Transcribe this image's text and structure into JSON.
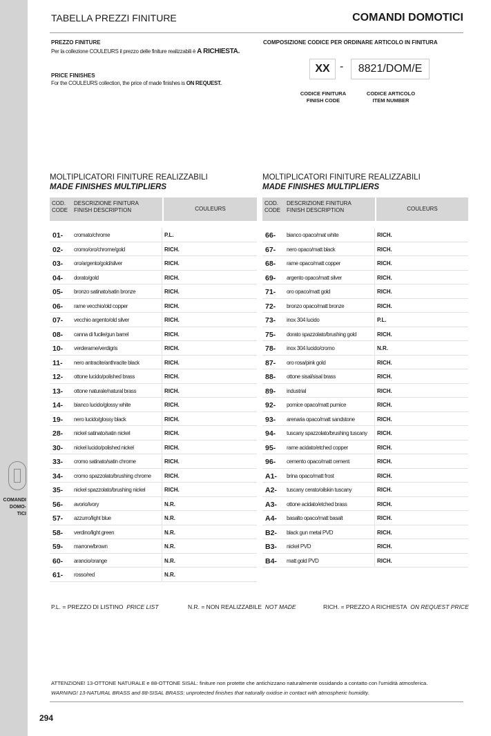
{
  "header": {
    "left_title": "TABELLA PREZZI FINITURE",
    "right_title": "COMANDI DOMOTICI"
  },
  "sidebar": {
    "label_lines": [
      "COMANDI",
      "DOMO-",
      "TICI"
    ],
    "icon": "switch-plate-icon",
    "color": "#d3d3d3"
  },
  "price": {
    "it_title": "PREZZO FINITURE",
    "it_text": "Per la collezione COULEURS il prezzo delle finiture realizzabili è ",
    "it_bold": "A RICHIESTA.",
    "en_title": "PRICE FINISHES",
    "en_text": "For the COULEURS collection, the price of made finishes is ",
    "en_bold": "ON REQUEST."
  },
  "code": {
    "title": "COMPOSIZIONE CODICE PER ORDINARE ARTICOLO IN FINITURA",
    "finish": "XX",
    "dash": "-",
    "item": "8821/DOM/E",
    "finish_label": [
      "CODICE FINITURA",
      "FINISH CODE"
    ],
    "item_label": [
      "CODICE ARTICOLO",
      "ITEM NUMBER"
    ]
  },
  "table_header": {
    "title": "MOLTIPLICATORI FINITURE REALIZZABILI",
    "subtitle": "MADE FINISHES MULTIPLIERS",
    "col_code": [
      "COD.",
      "CODE"
    ],
    "col_desc": [
      "DESCRIZIONE FINITURA",
      "FINISH DESCRIPTION"
    ],
    "col_val": "COULEURS"
  },
  "left_rows": [
    [
      "01-",
      "cromato/chrome",
      "P.L."
    ],
    [
      "02-",
      "cromo/oro/chrome/gold",
      "RICH."
    ],
    [
      "03-",
      "oro/argento/gold/silver",
      "RICH."
    ],
    [
      "04-",
      "dorato/gold",
      "RICH."
    ],
    [
      "05-",
      "bronzo satinato/satin bronze",
      "RICH."
    ],
    [
      "06-",
      "rame vecchio/old copper",
      "RICH."
    ],
    [
      "07-",
      "vecchio argento/old silver",
      "RICH."
    ],
    [
      "08-",
      "canna di fucile/gun barrel",
      "RICH."
    ],
    [
      "10-",
      "verderame/verdigris",
      "RICH."
    ],
    [
      "11-",
      "nero antracite/anthracite black",
      "RICH."
    ],
    [
      "12-",
      "ottone lucido/polished brass",
      "RICH."
    ],
    [
      "13-",
      "ottone naturale/natural brass",
      "RICH."
    ],
    [
      "14-",
      "bianco lucido/glossy white",
      "RICH."
    ],
    [
      "19-",
      "nero lucido/glossy black",
      "RICH."
    ],
    [
      "28-",
      "nickel satinato/satin nickel",
      "RICH."
    ],
    [
      "30-",
      "nickel lucido/polished nickel",
      "RICH."
    ],
    [
      "33-",
      "cromo satinato/satin chrome",
      "RICH."
    ],
    [
      "34-",
      "cromo spazzolato/brushing chrome",
      "RICH."
    ],
    [
      "35-",
      "nickel spazzolato/brushing nickel",
      "RICH."
    ],
    [
      "56-",
      "avorio/ivory",
      "N.R."
    ],
    [
      "57-",
      "azzurro/light blue",
      "N.R."
    ],
    [
      "58-",
      "verdino/light green",
      "N.R."
    ],
    [
      "59-",
      "marrone/brown",
      "N.R."
    ],
    [
      "60-",
      "arancio/orange",
      "N.R."
    ],
    [
      "61-",
      "rosso/red",
      "N.R."
    ]
  ],
  "right_rows": [
    [
      "66-",
      "bianco opaco/mat white",
      "RICH."
    ],
    [
      "67-",
      "nero opaco/matt black",
      "RICH."
    ],
    [
      "68-",
      "rame opaco/matt copper",
      "RICH."
    ],
    [
      "69-",
      "argento opaco/matt silver",
      "RICH."
    ],
    [
      "71-",
      "oro opaco/matt gold",
      "RICH."
    ],
    [
      "72-",
      "bronzo opaco/matt bronze",
      "RICH."
    ],
    [
      "73-",
      "inox 304 lucido",
      "P.L."
    ],
    [
      "75-",
      "dorato spazzolato/brushing gold",
      "RICH."
    ],
    [
      "78-",
      "inox 304 lucido/cromo",
      "N.R."
    ],
    [
      "87-",
      "oro rosa/pink gold",
      "RICH."
    ],
    [
      "88-",
      "ottone sisal/sisal brass",
      "RICH."
    ],
    [
      "89-",
      "industrial",
      "RICH."
    ],
    [
      "92-",
      "pomice opaco/matt pumice",
      "RICH."
    ],
    [
      "93-",
      "arenaria opaco/matt sandstone",
      "RICH."
    ],
    [
      "94-",
      "tuscany spazzolato/brushing tuscany",
      "RICH."
    ],
    [
      "95-",
      "rame acidato/etched copper",
      "RICH."
    ],
    [
      "96-",
      "cemento opaco/matt cement",
      "RICH."
    ],
    [
      "A1-",
      "brina opaco/matt frost",
      "RICH."
    ],
    [
      "A2-",
      "tuscany cerato/oilskin tuscany",
      "RICH."
    ],
    [
      "A3-",
      "ottone acidato/etched brass",
      "RICH."
    ],
    [
      "A4-",
      "basalto opaco/matt basalt",
      "RICH."
    ],
    [
      "B2-",
      "black gun metal PVD",
      "RICH."
    ],
    [
      "B3-",
      "nickel PVD",
      "RICH."
    ],
    [
      "B4-",
      "matt gold PVD",
      "RICH."
    ]
  ],
  "legend": [
    {
      "k": "P.L. = PREZZO DI LISTINO",
      "v": "PRICE LIST"
    },
    {
      "k": "N.R. = NON REALIZZABILE",
      "v": "NOT MADE"
    },
    {
      "k": "RICH. = PREZZO A RICHIESTA",
      "v": "ON REQUEST PRICE"
    }
  ],
  "warning": {
    "it": "ATTENZIONE! 13-OTTONE NATURALE e 88-OTTONE SISAL: finiture non protette che antichizzano naturalmente ossidando a contatto con l'umidità atmosferica.",
    "en": "WARNING! 13-NATURAL BRASS and 88-SISAL BRASS: unprotected finishes that naturally oxidise in contact with atmospheric humidity."
  },
  "page_number": "294"
}
